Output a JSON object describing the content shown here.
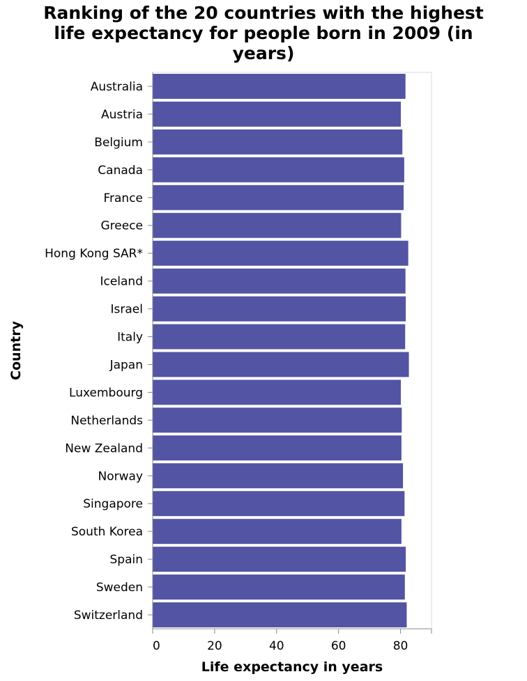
{
  "chart_data": {
    "type": "bar",
    "orientation": "horizontal",
    "title_lines": [
      "Ranking of the 20 countries with the highest",
      "life expectancy for people born in 2009 (in",
      "years)"
    ],
    "xlabel": "Life expectancy in years",
    "ylabel": "Country",
    "xlim": [
      0,
      90
    ],
    "x_ticks": [
      0,
      20,
      40,
      60,
      80
    ],
    "grid": false,
    "bar_color": "#5454a4",
    "categories": [
      "Australia",
      "Austria",
      "Belgium",
      "Canada",
      "France",
      "Greece",
      "Hong Kong SAR*",
      "Iceland",
      "Israel",
      "Italy",
      "Japan",
      "Luxembourg",
      "Netherlands",
      "New Zealand",
      "Norway",
      "Singapore",
      "South Korea",
      "Spain",
      "Sweden",
      "Switzerland"
    ],
    "values": [
      81.6,
      80.1,
      80.6,
      81.2,
      81.0,
      80.2,
      82.5,
      81.6,
      81.7,
      81.5,
      82.7,
      80.1,
      80.4,
      80.3,
      80.8,
      81.3,
      80.3,
      81.7,
      81.4,
      82.0
    ]
  }
}
